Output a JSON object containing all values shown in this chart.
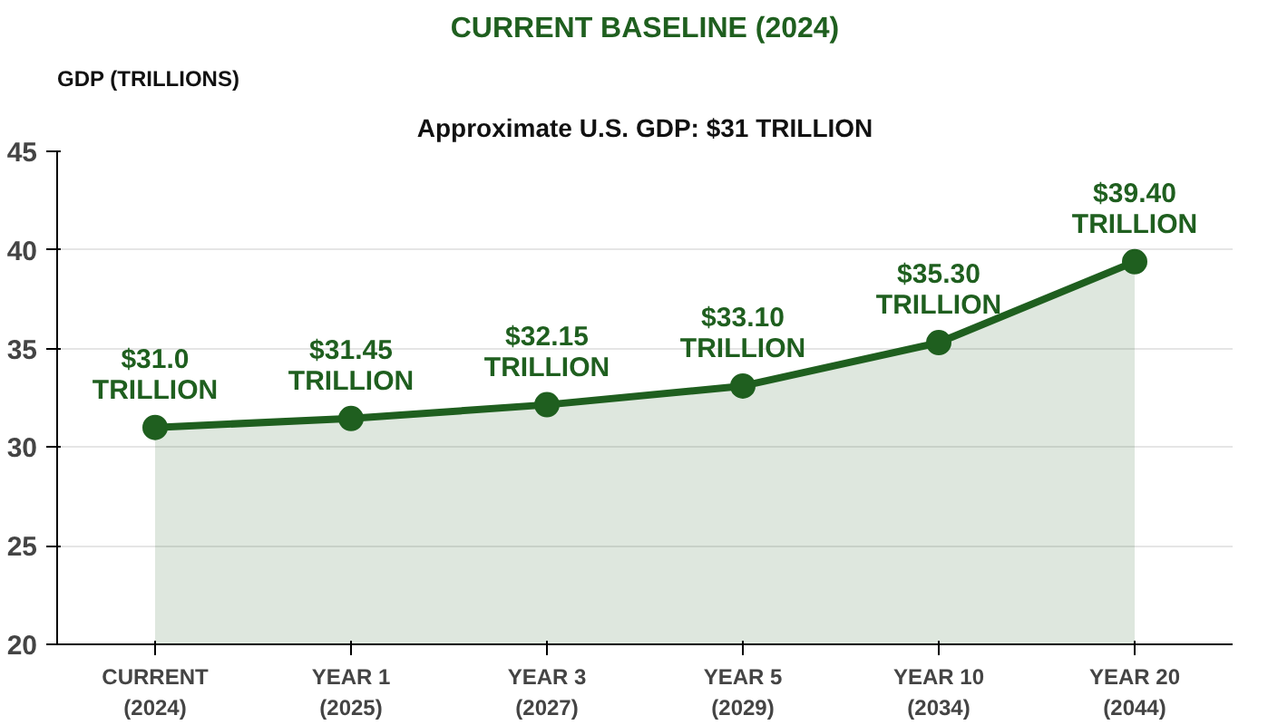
{
  "chart_data": {
    "type": "area",
    "title": "CURRENT BASELINE (2024)",
    "subtitle": "Approximate U.S. GDP: $31 TRILLION",
    "ylabel": "GDP (TRILLIONS)",
    "categories": [
      "CURRENT\n(2024)",
      "YEAR 1\n(2025)",
      "YEAR 3\n(2027)",
      "YEAR 5\n(2029)",
      "YEAR 10\n(2034)",
      "YEAR 20\n(2044)"
    ],
    "series": [
      {
        "color": "#1f5f1f",
        "values": [
          31.0,
          31.45,
          32.15,
          33.1,
          35.3,
          39.4
        ]
      }
    ],
    "value_labels": [
      "$31.0\nTRILLION",
      "$31.45\nTRILLION",
      "$32.15\nTRILLION",
      "$33.10\nTRILLION",
      "$35.30\nTRILLION",
      "$39.40\nTRILLION"
    ],
    "ylim": [
      20,
      45
    ],
    "yticks": [
      20,
      25,
      30,
      35,
      40,
      45
    ],
    "grid": "y",
    "marker": "circle",
    "line_style": "solid"
  }
}
